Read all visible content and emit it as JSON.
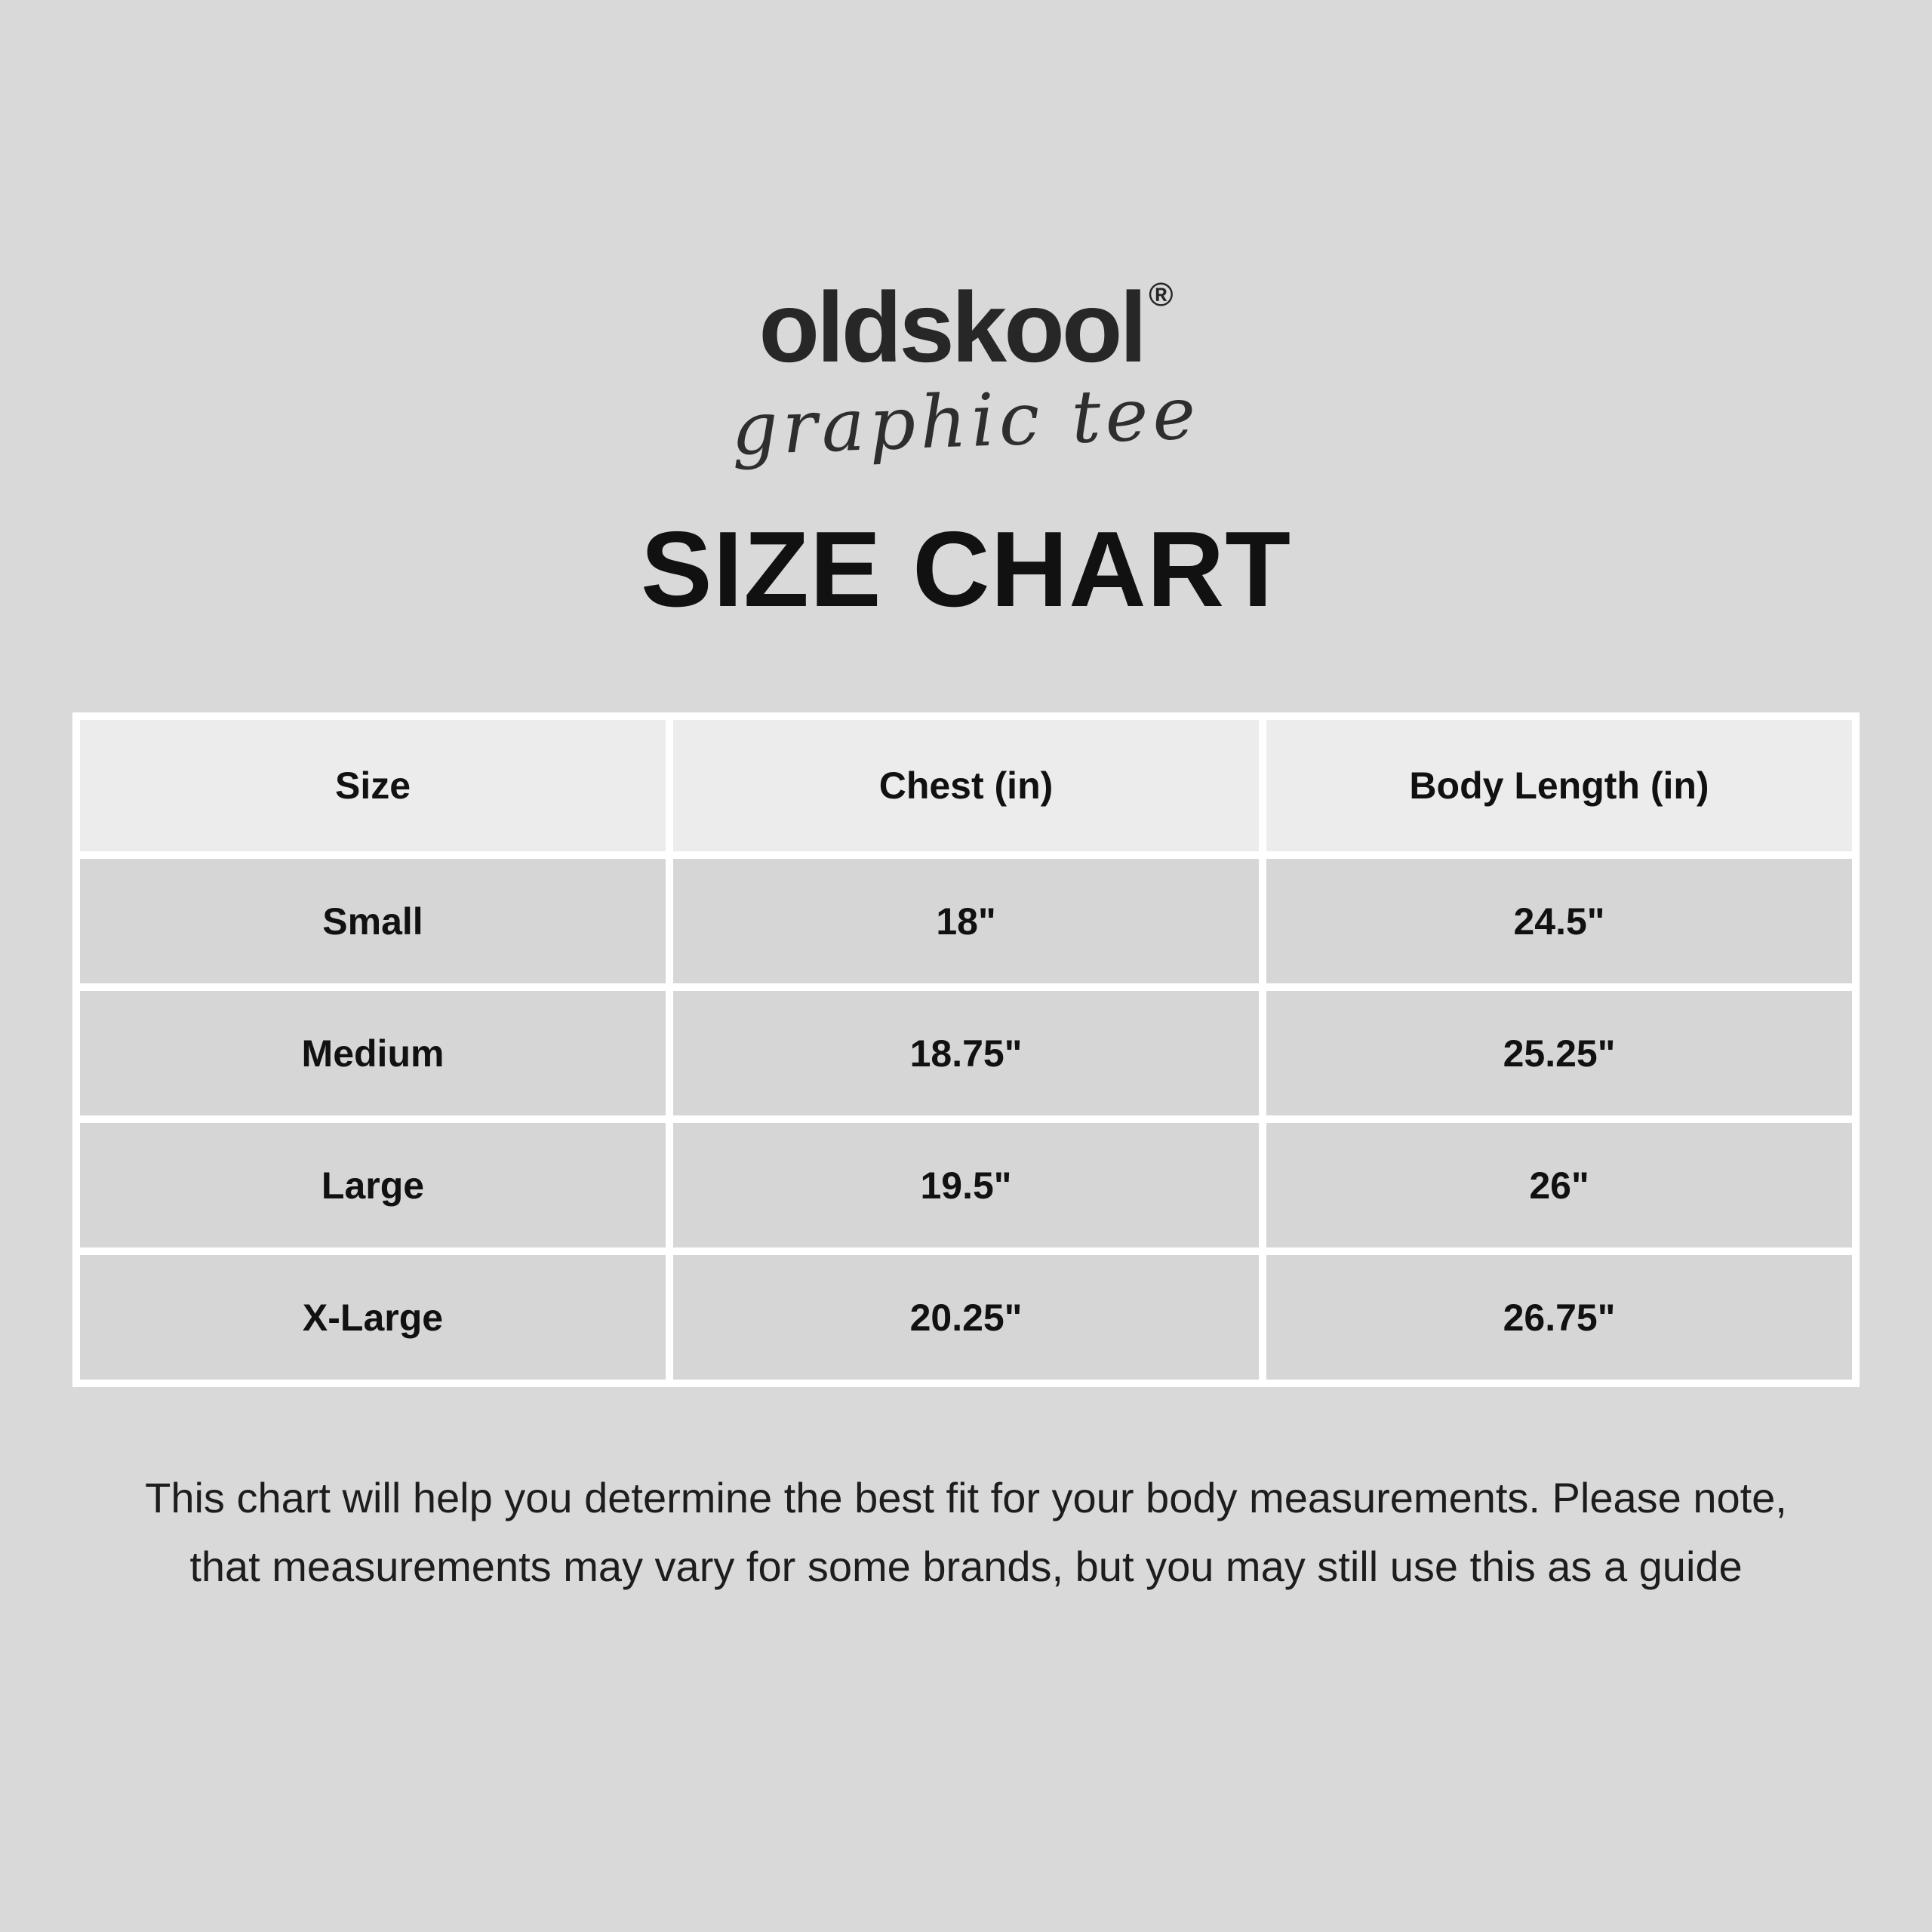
{
  "page": {
    "background_color": "#d9d9d9",
    "text_color": "#111111"
  },
  "logo": {
    "brand": "oldskool",
    "registered_mark": "®",
    "tagline": "graphic tee"
  },
  "title": "SIZE CHART",
  "table": {
    "header_background": "#ececec",
    "cell_background": "#d6d6d6",
    "divider_color": "#ffffff",
    "headers": [
      "Size",
      "Chest (in)",
      "Body Length (in)"
    ],
    "rows": [
      [
        "Small",
        "18\"",
        "24.5\""
      ],
      [
        "Medium",
        "18.75\"",
        "25.25\""
      ],
      [
        "Large",
        "19.5\"",
        "26\""
      ],
      [
        "X-Large",
        "20.25\"",
        "26.75\""
      ]
    ]
  },
  "footer": {
    "line1": "This chart will help you determine the best fit for your body measurements. Please note,",
    "line2": "that measurements may vary for some brands, but you may still use this as a guide"
  }
}
